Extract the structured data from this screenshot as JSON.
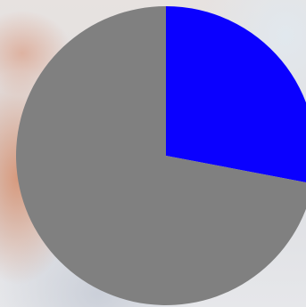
{
  "chart_data": {
    "type": "pie",
    "values": [
      28,
      72
    ],
    "colors": [
      "#0a00ff",
      "#808080"
    ],
    "start_angle_deg": 0,
    "direction": "clockwise"
  }
}
